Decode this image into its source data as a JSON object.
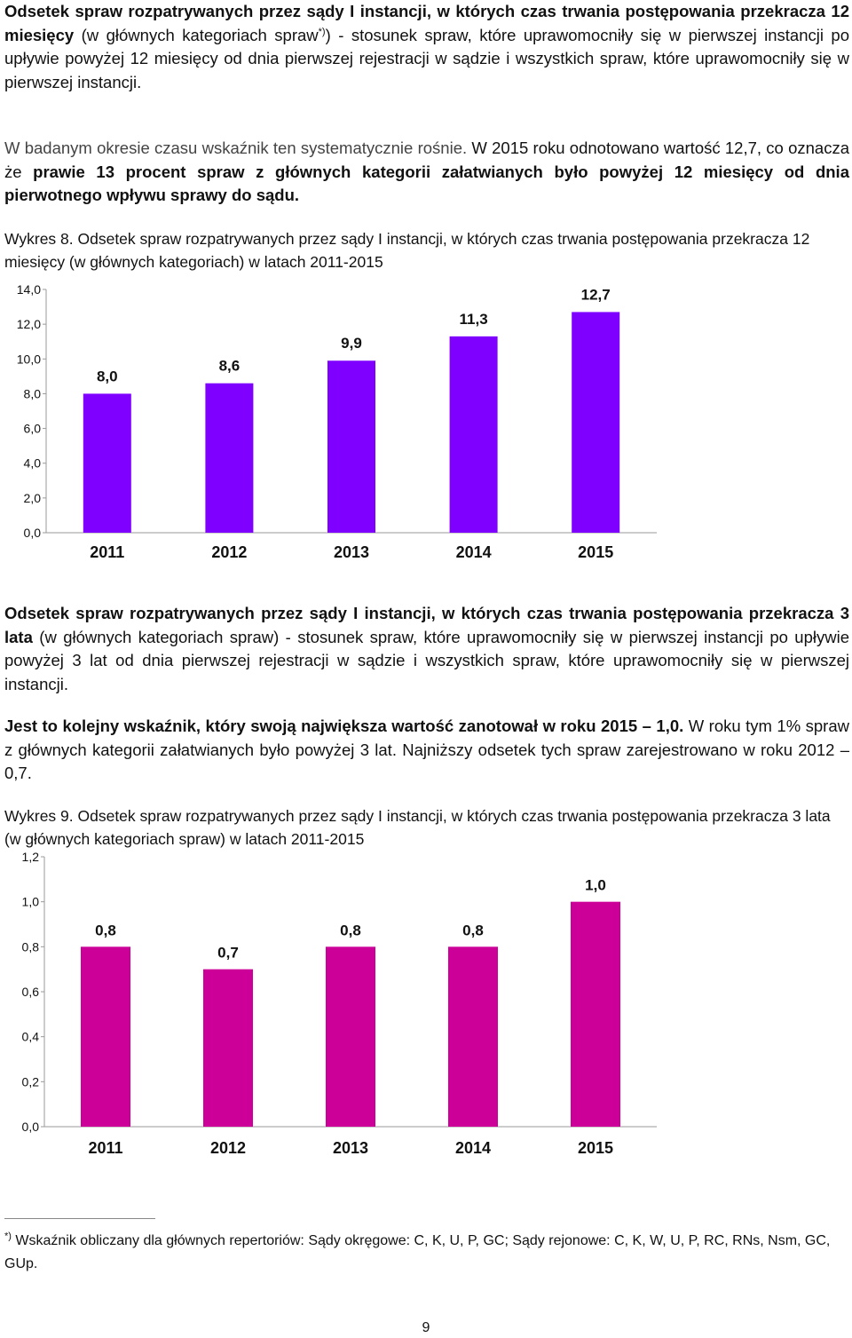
{
  "section1": {
    "p1": [
      {
        "t": "Odsetek spraw rozpatrywanych przez sądy I instancji, w których czas trwania postępowania przekracza 12 miesięcy",
        "b": true
      },
      {
        "t": " (w głównych kategoriach spraw",
        "b": false
      },
      {
        "t": "*)",
        "sup": true
      },
      {
        "t": ") - stosunek spraw, które uprawomocniły się w pierwszej instancji po upływie powyżej 12 miesięcy od dnia pierwszej rejestracji w sądzie i wszystkich spraw, które uprawomocniły się w pierwszej instancji.",
        "b": false
      }
    ],
    "p2": [
      {
        "t": "W badanym okresie czasu wskaźnik ten systematycznie rośnie.",
        "b": false,
        "gray": true
      },
      {
        "t": " W 2015 roku odnotowano wartość 12,7, co oznacza że ",
        "b": false
      },
      {
        "t": "prawie 13 procent spraw z głównych kategorii załatwianych było powyżej 12 miesięcy od dnia pierwotnego wpływu sprawy do sądu.",
        "b": true
      }
    ],
    "caption": "Wykres 8. Odsetek spraw rozpatrywanych przez sądy I instancji, w których czas trwania postępowania przekracza 12 miesięcy (w głównych kategoriach) w latach 2011-2015"
  },
  "section2": {
    "p1": [
      {
        "t": "Odsetek spraw rozpatrywanych przez sądy I instancji, w których czas trwania postępowania przekracza 3 lata",
        "b": true
      },
      {
        "t": " (w głównych kategoriach spraw) - stosunek spraw, które uprawomocniły się w pierwszej instancji po upływie powyżej 3 lat od dnia pierwszej rejestracji w sądzie i wszystkich spraw, które uprawomocniły się w pierwszej instancji.",
        "b": false
      }
    ],
    "p2": [
      {
        "t": "Jest to kolejny wskaźnik, który swoją największa wartość zanotował w roku 2015 – 1,0.",
        "b": true
      },
      {
        "t": " W roku tym 1% spraw z głównych kategorii załatwianych było powyżej 3 lat. Najniższy odsetek tych spraw zarejestrowano w roku 2012 – 0,7.",
        "b": false
      }
    ],
    "caption": "Wykres 9. Odsetek spraw rozpatrywanych przez sądy I instancji, w których czas trwania postępowania przekracza 3 lata (w głównych kategoriach spraw) w latach 2011-2015"
  },
  "chart_data": [
    {
      "type": "bar",
      "categories": [
        "2011",
        "2012",
        "2013",
        "2014",
        "2015"
      ],
      "values": [
        8.0,
        8.6,
        9.9,
        11.3,
        12.7
      ],
      "value_labels": [
        "8,0",
        "8,6",
        "9,9",
        "11,3",
        "12,7"
      ],
      "ylim": [
        0,
        14
      ],
      "yticks": [
        "0,0",
        "2,0",
        "4,0",
        "6,0",
        "8,0",
        "10,0",
        "12,0",
        "14,0"
      ],
      "color": "#7f00ff",
      "grid": false
    },
    {
      "type": "bar",
      "categories": [
        "2011",
        "2012",
        "2013",
        "2014",
        "2015"
      ],
      "values": [
        0.8,
        0.7,
        0.8,
        0.8,
        1.0
      ],
      "value_labels": [
        "0,8",
        "0,7",
        "0,8",
        "0,8",
        "1,0"
      ],
      "ylim": [
        0,
        1.2
      ],
      "yticks": [
        "0,0",
        "0,2",
        "0,4",
        "0,6",
        "0,8",
        "1,0",
        "1,2"
      ],
      "color": "#cc0099",
      "grid": false
    }
  ],
  "footnote": {
    "mark": "*)",
    "text": " Wskaźnik obliczany dla głównych repertoriów: Sądy okręgowe: C, K, U, P, GC; Sądy rejonowe: C, K,  W, U, P, RC, RNs, Nsm, GC, GUp."
  },
  "page_number": "9"
}
